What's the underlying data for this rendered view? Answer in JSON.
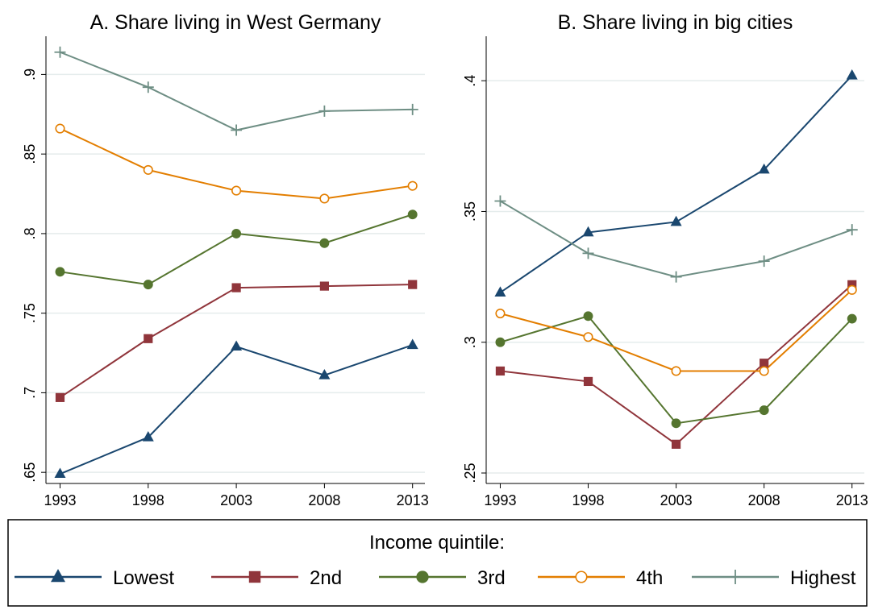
{
  "chart_data": [
    {
      "type": "line",
      "title": "A. Share living in West Germany",
      "legend_title": "Income quintile:",
      "x": [
        1993,
        1998,
        2003,
        2008,
        2013
      ],
      "xlim": [
        1992.2,
        2013.7
      ],
      "xticks": [
        1993,
        1998,
        2003,
        2008,
        2013
      ],
      "ylim": [
        0.643,
        0.924
      ],
      "yticks": [
        {
          "value": 0.65,
          "label": ".65"
        },
        {
          "value": 0.7,
          "label": ".7"
        },
        {
          "value": 0.75,
          "label": ".75"
        },
        {
          "value": 0.8,
          "label": ".8"
        },
        {
          "value": 0.85,
          "label": ".85"
        },
        {
          "value": 0.9,
          "label": ".9"
        }
      ],
      "grid": true,
      "series": [
        {
          "name": "Lowest",
          "color": "#1a476f",
          "marker": "triangle",
          "values": [
            0.649,
            0.672,
            0.729,
            0.711,
            0.73
          ]
        },
        {
          "name": "2nd",
          "color": "#90353b",
          "marker": "square",
          "values": [
            0.697,
            0.734,
            0.766,
            0.767,
            0.768
          ]
        },
        {
          "name": "3rd",
          "color": "#55752f",
          "marker": "circle",
          "values": [
            0.776,
            0.768,
            0.8,
            0.794,
            0.812
          ]
        },
        {
          "name": "4th",
          "color": "#e37e00",
          "marker": "hollow-circle",
          "values": [
            0.866,
            0.84,
            0.827,
            0.822,
            0.83
          ]
        },
        {
          "name": "Highest",
          "color": "#6e8e84",
          "marker": "plus",
          "values": [
            0.914,
            0.892,
            0.865,
            0.877,
            0.878
          ]
        }
      ]
    },
    {
      "type": "line",
      "title": "B. Share living in big cities",
      "x": [
        1993,
        1998,
        2003,
        2008,
        2013
      ],
      "xlim": [
        1992.2,
        2013.7
      ],
      "xticks": [
        1993,
        1998,
        2003,
        2008,
        2013
      ],
      "ylim": [
        0.246,
        0.417
      ],
      "yticks": [
        {
          "value": 0.25,
          "label": ".25"
        },
        {
          "value": 0.3,
          "label": ".3"
        },
        {
          "value": 0.35,
          "label": ".35"
        },
        {
          "value": 0.4,
          "label": ".4"
        }
      ],
      "grid": true,
      "series": [
        {
          "color": "#1a476f",
          "marker": "triangle",
          "values": [
            0.319,
            0.342,
            0.346,
            0.366,
            0.402
          ]
        },
        {
          "color": "#90353b",
          "marker": "square",
          "values": [
            0.289,
            0.285,
            0.261,
            0.292,
            0.322
          ]
        },
        {
          "color": "#55752f",
          "marker": "circle",
          "values": [
            0.3,
            0.31,
            0.269,
            0.274,
            0.309
          ]
        },
        {
          "color": "#e37e00",
          "marker": "hollow-circle",
          "values": [
            0.311,
            0.302,
            0.289,
            0.289,
            0.32
          ]
        },
        {
          "color": "#6e8e84",
          "marker": "plus",
          "values": [
            0.354,
            0.334,
            0.325,
            0.331,
            0.343
          ]
        }
      ]
    }
  ]
}
